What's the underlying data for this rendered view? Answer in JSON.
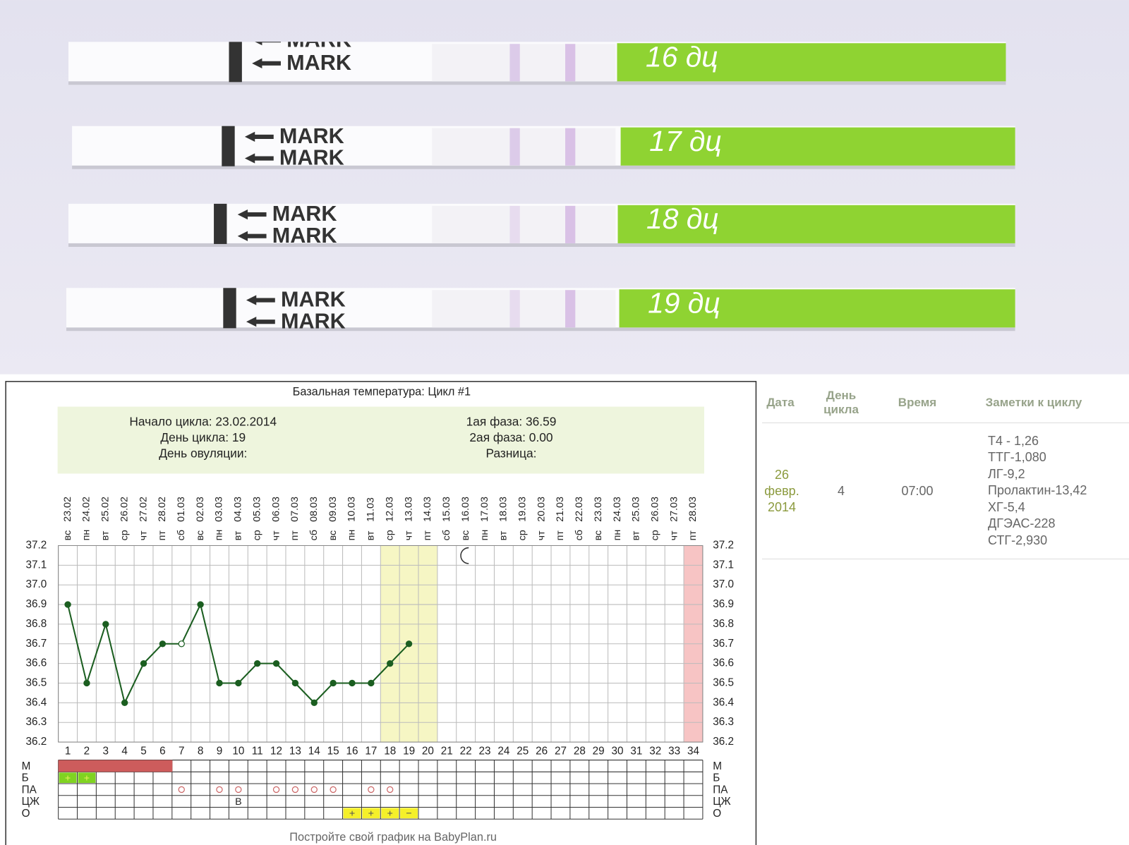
{
  "photo": {
    "strip_labels": [
      "16 дц",
      "17 дц",
      "18 дц",
      "19 дц"
    ],
    "mark_text": "MARK"
  },
  "chart_data": {
    "type": "line",
    "title": "Базальная температура: Цикл #1",
    "info_left": [
      "Начало цикла: 23.02.2014",
      "День цикла: 19",
      "День овуляции:"
    ],
    "info_right": [
      "1ая фаза: 36.59",
      "2ая фаза: 0.00",
      "Разница:"
    ],
    "x": [
      1,
      2,
      3,
      4,
      5,
      6,
      7,
      8,
      9,
      10,
      11,
      12,
      13,
      14,
      15,
      16,
      17,
      18,
      19,
      20,
      21,
      22,
      23,
      24,
      25,
      26,
      27,
      28,
      29,
      30,
      31,
      32,
      33,
      34
    ],
    "dates": [
      "23.02",
      "24.02",
      "25.02",
      "26.02",
      "27.02",
      "28.02",
      "01.03",
      "02.03",
      "03.03",
      "04.03",
      "05.03",
      "06.03",
      "07.03",
      "08.03",
      "09.03",
      "10.03",
      "11.03",
      "12.03",
      "13.03",
      "14.03",
      "15.03",
      "16.03",
      "17.03",
      "18.03",
      "19.03",
      "20.03",
      "21.03",
      "22.03",
      "23.03",
      "24.03",
      "25.03",
      "26.03",
      "27.03",
      "28.03"
    ],
    "weekdays": [
      "вс",
      "пн",
      "вт",
      "ср",
      "чт",
      "пт",
      "сб",
      "вс",
      "пн",
      "вт",
      "ср",
      "чт",
      "пт",
      "сб",
      "вс",
      "пн",
      "вт",
      "ср",
      "чт",
      "пт",
      "сб",
      "вс",
      "пн",
      "вт",
      "ср",
      "чт",
      "пт",
      "сб",
      "вс",
      "пн",
      "вт",
      "ср",
      "чт",
      "пт"
    ],
    "series": [
      {
        "name": "Базальная температура",
        "color": "#1b5e20",
        "values": [
          36.9,
          36.5,
          36.8,
          36.4,
          36.6,
          36.7,
          36.7,
          36.9,
          36.5,
          36.5,
          36.6,
          36.6,
          36.5,
          36.4,
          36.5,
          36.5,
          36.5,
          36.6,
          36.7,
          null,
          null,
          null,
          null,
          null,
          null,
          null,
          null,
          null,
          null,
          null,
          null,
          null,
          null,
          null
        ]
      }
    ],
    "hollow_marker_days": [
      7
    ],
    "highlight_days": [
      18,
      19,
      20
    ],
    "highlight_color": "#f6f6c4",
    "marked_days": [
      34
    ],
    "marked_color": "#f7c4c4",
    "moon_day": 22,
    "ylim": [
      36.2,
      37.2
    ],
    "yticks": [
      36.2,
      36.3,
      36.4,
      36.5,
      36.6,
      36.7,
      36.8,
      36.9,
      {
        "value": 37,
        "label": "37.0"
      },
      37.1,
      37.2
    ],
    "grid": true,
    "symptom_rows": [
      {
        "label": "М",
        "days": [
          1,
          2,
          3,
          4,
          5,
          6
        ],
        "color": "#cd5c5c"
      },
      {
        "label": "Б",
        "days": [
          1,
          2
        ],
        "symbol": "+",
        "color": "#7fd321"
      },
      {
        "label": "ПА",
        "days": [
          7,
          9,
          10,
          12,
          13,
          14,
          15,
          17,
          18
        ],
        "color": "#cc6666"
      },
      {
        "label": "ЦЖ",
        "days": [
          10
        ],
        "symbol": "В"
      },
      {
        "label": "О",
        "days": [
          16,
          17,
          18,
          19
        ],
        "symbols": [
          "+",
          "+",
          "+",
          "−"
        ],
        "color": "#f5f02a"
      }
    ],
    "footer": "Постройте свой график на BabyPlan.ru"
  },
  "table": {
    "headers": [
      "Дата",
      "День цикла",
      "Время",
      "Заметки к циклу"
    ],
    "rows": [
      {
        "date": "26 февр. 2014",
        "day": "4",
        "time": "07:00",
        "notes": [
          "Т4 - 1,26",
          "ТТГ-1,080",
          "ЛГ-9,2",
          "Пролактин-13,42",
          "ХГ-5,4",
          "ДГЭАС-228",
          "СТГ-2,930"
        ]
      }
    ]
  }
}
